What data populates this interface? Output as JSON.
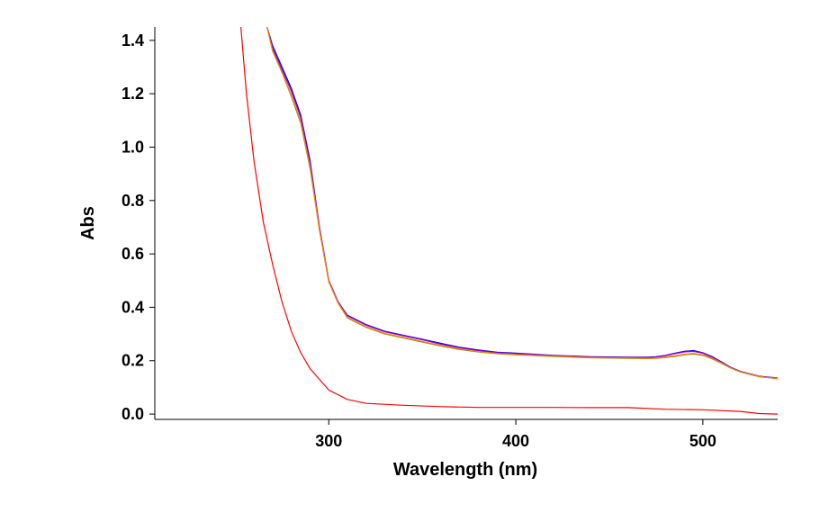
{
  "chart_data": {
    "type": "line",
    "title": "",
    "xlabel": "Wavelength (nm)",
    "ylabel": "Abs",
    "xlim": [
      207,
      540
    ],
    "ylim": [
      -0.02,
      1.45
    ],
    "xticks": [
      300,
      400,
      500
    ],
    "xtick_labels": [
      "300",
      "400",
      "500"
    ],
    "yticks": [
      0.0,
      0.2,
      0.4,
      0.6,
      0.8,
      1.0,
      1.2,
      1.4
    ],
    "ytick_labels": [
      "0.0",
      "0.2",
      "0.4",
      "0.6",
      "0.8",
      "1.0",
      "1.2",
      "1.4"
    ],
    "grid": false,
    "series": [
      {
        "name": "blue",
        "color": "#0000ff",
        "x": [
          267,
          270,
          275,
          280,
          285,
          290,
          295,
          300,
          305,
          310,
          320,
          330,
          340,
          350,
          360,
          370,
          380,
          390,
          400,
          420,
          440,
          460,
          470,
          475,
          480,
          485,
          490,
          495,
          500,
          505,
          510,
          515,
          520,
          530,
          540
        ],
        "y": [
          1.45,
          1.38,
          1.3,
          1.22,
          1.12,
          0.95,
          0.7,
          0.5,
          0.42,
          0.37,
          0.335,
          0.31,
          0.295,
          0.28,
          0.265,
          0.25,
          0.24,
          0.232,
          0.228,
          0.22,
          0.215,
          0.213,
          0.213,
          0.215,
          0.22,
          0.228,
          0.235,
          0.238,
          0.23,
          0.215,
          0.195,
          0.175,
          0.16,
          0.142,
          0.135
        ]
      },
      {
        "name": "violet",
        "color": "#9900cc",
        "x": [
          267,
          270,
          275,
          280,
          285,
          290,
          295,
          300,
          305,
          310,
          320,
          330,
          340,
          350,
          360,
          370,
          380,
          390,
          400,
          420,
          440,
          460,
          470,
          475,
          480,
          485,
          490,
          495,
          500,
          505,
          510,
          515,
          520,
          530,
          540
        ],
        "y": [
          1.45,
          1.37,
          1.29,
          1.21,
          1.11,
          0.94,
          0.7,
          0.5,
          0.42,
          0.368,
          0.333,
          0.308,
          0.293,
          0.278,
          0.262,
          0.248,
          0.238,
          0.23,
          0.226,
          0.219,
          0.214,
          0.212,
          0.212,
          0.214,
          0.219,
          0.226,
          0.233,
          0.235,
          0.228,
          0.213,
          0.194,
          0.174,
          0.159,
          0.141,
          0.134
        ]
      },
      {
        "name": "olive",
        "color": "#808000",
        "x": [
          267,
          270,
          275,
          280,
          285,
          290,
          295,
          300,
          305,
          310,
          320,
          330,
          340,
          350,
          360,
          370,
          380,
          390,
          400,
          420,
          440,
          460,
          470,
          475,
          480,
          485,
          490,
          495,
          500,
          505,
          510,
          515,
          520,
          530,
          540
        ],
        "y": [
          1.45,
          1.36,
          1.28,
          1.19,
          1.09,
          0.92,
          0.69,
          0.495,
          0.415,
          0.36,
          0.325,
          0.3,
          0.285,
          0.27,
          0.255,
          0.242,
          0.233,
          0.226,
          0.222,
          0.216,
          0.211,
          0.209,
          0.208,
          0.209,
          0.212,
          0.216,
          0.222,
          0.225,
          0.22,
          0.207,
          0.19,
          0.172,
          0.158,
          0.14,
          0.133
        ]
      },
      {
        "name": "orange",
        "color": "#ff8000",
        "x": [
          267,
          270,
          275,
          280,
          285,
          290,
          295,
          300,
          305,
          310,
          320,
          330,
          340,
          350,
          360,
          370,
          380,
          390,
          400,
          420,
          440,
          460,
          470,
          475,
          480,
          485,
          490,
          495,
          500,
          505,
          510,
          515,
          520,
          530,
          540
        ],
        "y": [
          1.45,
          1.36,
          1.28,
          1.195,
          1.095,
          0.925,
          0.69,
          0.496,
          0.416,
          0.362,
          0.327,
          0.302,
          0.287,
          0.272,
          0.257,
          0.244,
          0.234,
          0.227,
          0.223,
          0.217,
          0.212,
          0.21,
          0.209,
          0.21,
          0.214,
          0.218,
          0.224,
          0.227,
          0.222,
          0.209,
          0.191,
          0.173,
          0.158,
          0.14,
          0.133
        ]
      },
      {
        "name": "red",
        "color": "#ff0000",
        "x": [
          253,
          256,
          260,
          265,
          270,
          275,
          280,
          285,
          290,
          300,
          310,
          320,
          340,
          360,
          380,
          400,
          420,
          440,
          460,
          480,
          500,
          520,
          530,
          540
        ],
        "y": [
          1.45,
          1.2,
          0.95,
          0.72,
          0.56,
          0.42,
          0.31,
          0.23,
          0.17,
          0.09,
          0.055,
          0.04,
          0.033,
          0.028,
          0.025,
          0.025,
          0.025,
          0.024,
          0.024,
          0.018,
          0.016,
          0.01,
          0.002,
          0.0
        ]
      }
    ]
  }
}
